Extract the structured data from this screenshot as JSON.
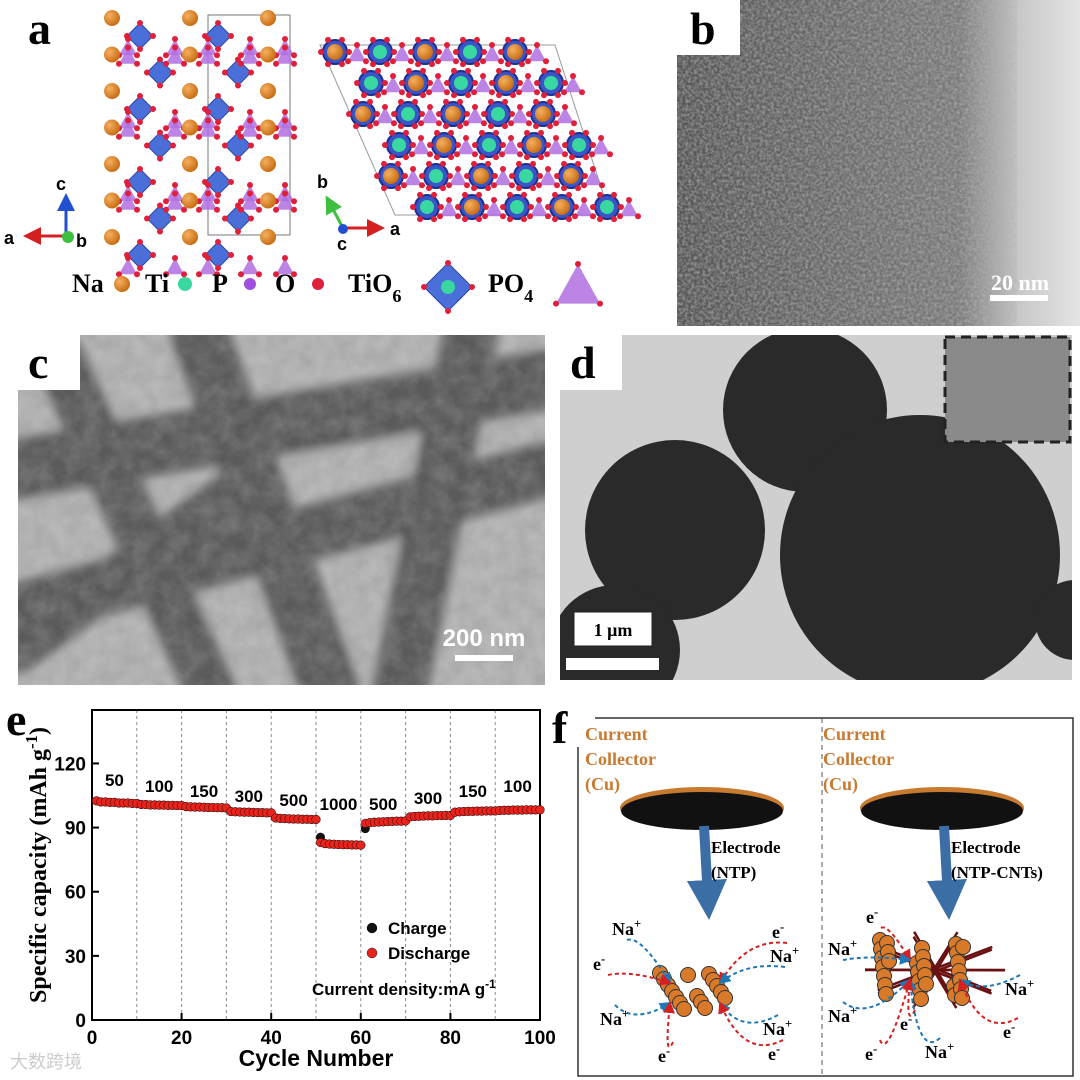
{
  "panels": {
    "a": {
      "label": "a",
      "axes_left": {
        "vertical": "c",
        "horizontal": "a",
        "out": "b"
      },
      "axes_right": {
        "vertical": "b",
        "out": "c",
        "horizontal": "a"
      },
      "legend": [
        {
          "text": "Na"
        },
        {
          "text": "Ti"
        },
        {
          "text": "P"
        },
        {
          "text": "O"
        },
        {
          "text": "TiO",
          "sub": "6"
        },
        {
          "text": "PO",
          "sub": "4"
        }
      ]
    },
    "b": {
      "label": "b",
      "scale_bar": "20 nm"
    },
    "c": {
      "label": "c",
      "scale_bar": "200 nm"
    },
    "d": {
      "label": "d",
      "scale_bar": "1 μm"
    },
    "e": {
      "label": "e",
      "chart_data": {
        "type": "scatter",
        "xlabel": "Cycle Number",
        "ylabel": {
          "text": "Specific capacity (mAh g",
          "sup": "-1",
          "end": ")"
        },
        "xlim": [
          0,
          100
        ],
        "ylim": [
          0,
          145
        ],
        "xticks": [
          0,
          20,
          40,
          60,
          80,
          100
        ],
        "yticks": [
          0,
          30,
          60,
          90,
          120
        ],
        "vlines": [
          10,
          20,
          30,
          40,
          50,
          60,
          70,
          80,
          90
        ],
        "rate_labels": [
          "50",
          "100",
          "150",
          "300",
          "500",
          "1000",
          "500",
          "300",
          "150",
          "100"
        ],
        "note": {
          "text": "Current density:mA g",
          "sup": "-1"
        },
        "x": [
          1,
          2,
          3,
          4,
          5,
          6,
          7,
          8,
          9,
          10,
          11,
          12,
          13,
          14,
          15,
          16,
          17,
          18,
          19,
          20,
          21,
          22,
          23,
          24,
          25,
          26,
          27,
          28,
          29,
          30,
          31,
          32,
          33,
          34,
          35,
          36,
          37,
          38,
          39,
          40,
          41,
          42,
          43,
          44,
          45,
          46,
          47,
          48,
          49,
          50,
          51,
          52,
          53,
          54,
          55,
          56,
          57,
          58,
          59,
          60,
          61,
          62,
          63,
          64,
          65,
          66,
          67,
          68,
          69,
          70,
          71,
          72,
          73,
          74,
          75,
          76,
          77,
          78,
          79,
          80,
          81,
          82,
          83,
          84,
          85,
          86,
          87,
          88,
          89,
          90,
          91,
          92,
          93,
          94,
          95,
          96,
          97,
          98,
          99,
          100
        ],
        "series": [
          {
            "name": "Charge",
            "color": "#111111",
            "values": [
              102.5,
              102,
              102,
              101.8,
              101.8,
              101.5,
              101.5,
              101.5,
              101.3,
              101.3,
              100.8,
              100.8,
              100.6,
              100.6,
              100.5,
              100.5,
              100.4,
              100.4,
              100.3,
              100.3,
              99.8,
              99.7,
              99.6,
              99.6,
              99.5,
              99.4,
              99.4,
              99.3,
              99.3,
              99.2,
              97.5,
              97.4,
              97.3,
              97.2,
              97.2,
              97.1,
              97,
              97,
              96.9,
              96.9,
              94.5,
              94.3,
              94.2,
              94.1,
              94,
              94,
              93.9,
              93.9,
              93.8,
              93.8,
              85.5,
              82.5,
              82.3,
              82.2,
              82.1,
              82,
              82,
              81.9,
              81.9,
              81.8,
              89.5,
              92.3,
              92.5,
              92.6,
              92.7,
              92.8,
              92.9,
              93,
              93,
              93.1,
              95,
              95.2,
              95.3,
              95.4,
              95.5,
              95.5,
              95.6,
              95.6,
              95.7,
              95.7,
              97.2,
              97.4,
              97.5,
              97.6,
              97.6,
              97.7,
              97.7,
              97.8,
              97.8,
              97.8,
              98,
              98.1,
              98.1,
              98.2,
              98.2,
              98.2,
              98.3,
              98.3,
              98.3,
              98.3
            ]
          },
          {
            "name": "Discharge",
            "color": "#e8231c",
            "values": [
              102.5,
              102,
              102,
              101.8,
              101.8,
              101.5,
              101.5,
              101.5,
              101.3,
              101.3,
              100.8,
              100.8,
              100.6,
              100.6,
              100.5,
              100.5,
              100.4,
              100.4,
              100.3,
              100.3,
              99.8,
              99.7,
              99.6,
              99.6,
              99.5,
              99.4,
              99.4,
              99.3,
              99.3,
              99.2,
              97.5,
              97.4,
              97.3,
              97.2,
              97.2,
              97.1,
              97,
              97,
              96.9,
              96.9,
              94.5,
              94.3,
              94.2,
              94.1,
              94,
              94,
              93.9,
              93.9,
              93.8,
              93.8,
              83,
              82.5,
              82.3,
              82.2,
              82.1,
              82,
              82,
              81.9,
              81.9,
              81.8,
              92,
              92.3,
              92.5,
              92.6,
              92.7,
              92.8,
              92.9,
              93,
              93,
              93.1,
              95,
              95.2,
              95.3,
              95.4,
              95.5,
              95.5,
              95.6,
              95.6,
              95.7,
              95.7,
              97.2,
              97.4,
              97.5,
              97.6,
              97.6,
              97.7,
              97.7,
              97.8,
              97.8,
              97.8,
              98,
              98.1,
              98.1,
              98.2,
              98.2,
              98.2,
              98.3,
              98.3,
              98.3,
              98.3
            ]
          }
        ]
      }
    },
    "f": {
      "label": "f",
      "electrodes": [
        {
          "collector": [
            "Current",
            "Collector",
            "(Cu)"
          ],
          "electrode": [
            "Electrode",
            "(NTP)"
          ],
          "ions": [
            {
              "base": "Na",
              "sup": "+"
            },
            {
              "base": "e",
              "sup": "-"
            },
            {
              "base": "e",
              "sup": "-"
            },
            {
              "base": "Na",
              "sup": "+"
            },
            {
              "base": "Na",
              "sup": "+"
            },
            {
              "base": "Na",
              "sup": "+"
            },
            {
              "base": "e",
              "sup": "-"
            },
            {
              "base": "e",
              "sup": "-"
            }
          ]
        },
        {
          "collector": [
            "Current",
            "Collector",
            "(Cu)"
          ],
          "electrode": [
            "Electrode",
            "(NTP-CNTs)"
          ],
          "ions": [
            {
              "base": "e",
              "sup": "-"
            },
            {
              "base": "Na",
              "sup": "+"
            },
            {
              "base": "Na",
              "sup": "+"
            },
            {
              "base": "Na",
              "sup": "+"
            },
            {
              "base": "e",
              "sup": "-"
            },
            {
              "base": "e",
              "sup": "-"
            },
            {
              "base": "Na",
              "sup": "+"
            },
            {
              "base": "e",
              "sup": "-"
            }
          ]
        }
      ]
    }
  },
  "watermark": "大数跨境"
}
